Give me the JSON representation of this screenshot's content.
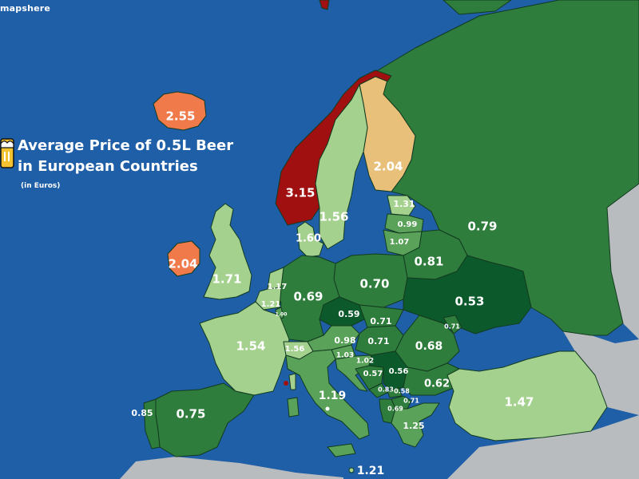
{
  "brand": "mapshere",
  "title_line1": "Average Price of 0.5L Beer",
  "title_line2": "in European Countries",
  "subtitle": "(in Euros)",
  "colors": {
    "sea": "#1f5fa8",
    "non_data_land": "#b9bcbe",
    "scale": {
      "darkest_green": "#0c5a2b",
      "dark_green": "#2f7d3c",
      "medium_green": "#5aa25a",
      "light_green": "#a5d18f",
      "tan": "#e8c07a",
      "orange": "#f07a4a",
      "red": "#a01010"
    }
  },
  "prices": [
    {
      "country": "Iceland",
      "price": "2.55"
    },
    {
      "country": "Norway",
      "price": "3.15"
    },
    {
      "country": "Sweden",
      "price": "1.56"
    },
    {
      "country": "Finland",
      "price": "2.04"
    },
    {
      "country": "Denmark",
      "price": "1.60"
    },
    {
      "country": "Ireland",
      "price": "2.04"
    },
    {
      "country": "United Kingdom",
      "price": "1.71"
    },
    {
      "country": "Estonia",
      "price": "1.31"
    },
    {
      "country": "Latvia",
      "price": "0.99"
    },
    {
      "country": "Lithuania",
      "price": "1.07"
    },
    {
      "country": "Belarus",
      "price": "0.81"
    },
    {
      "country": "Russia",
      "price": "0.79"
    },
    {
      "country": "Netherlands",
      "price": "1.17"
    },
    {
      "country": "Belgium",
      "price": "1.21"
    },
    {
      "country": "Luxembourg",
      "price": "1.00"
    },
    {
      "country": "Germany",
      "price": "0.69"
    },
    {
      "country": "Poland",
      "price": "0.70"
    },
    {
      "country": "Ukraine",
      "price": "0.53"
    },
    {
      "country": "Czech Republic",
      "price": "0.59"
    },
    {
      "country": "Slovakia",
      "price": "0.71"
    },
    {
      "country": "Moldova",
      "price": "0.71"
    },
    {
      "country": "France",
      "price": "1.54"
    },
    {
      "country": "Switzerland",
      "price": "1.56"
    },
    {
      "country": "Austria",
      "price": "0.98"
    },
    {
      "country": "Hungary",
      "price": "0.71"
    },
    {
      "country": "Romania",
      "price": "0.68"
    },
    {
      "country": "Slovenia",
      "price": "1.03"
    },
    {
      "country": "Croatia",
      "price": "1.02"
    },
    {
      "country": "Bosnia and Herzegovina",
      "price": "0.57"
    },
    {
      "country": "Serbia",
      "price": "0.56"
    },
    {
      "country": "Bulgaria",
      "price": "0.62"
    },
    {
      "country": "Montenegro",
      "price": "0.83"
    },
    {
      "country": "Kosovo",
      "price": "0.58"
    },
    {
      "country": "North Macedonia",
      "price": "0.71"
    },
    {
      "country": "Albania",
      "price": "0.69"
    },
    {
      "country": "Italy",
      "price": "1.19"
    },
    {
      "country": "Greece",
      "price": "1.25"
    },
    {
      "country": "Turkey",
      "price": "1.47"
    },
    {
      "country": "Spain",
      "price": "0.75"
    },
    {
      "country": "Portugal",
      "price": "0.85"
    },
    {
      "country": "Malta",
      "price": "1.21"
    }
  ]
}
